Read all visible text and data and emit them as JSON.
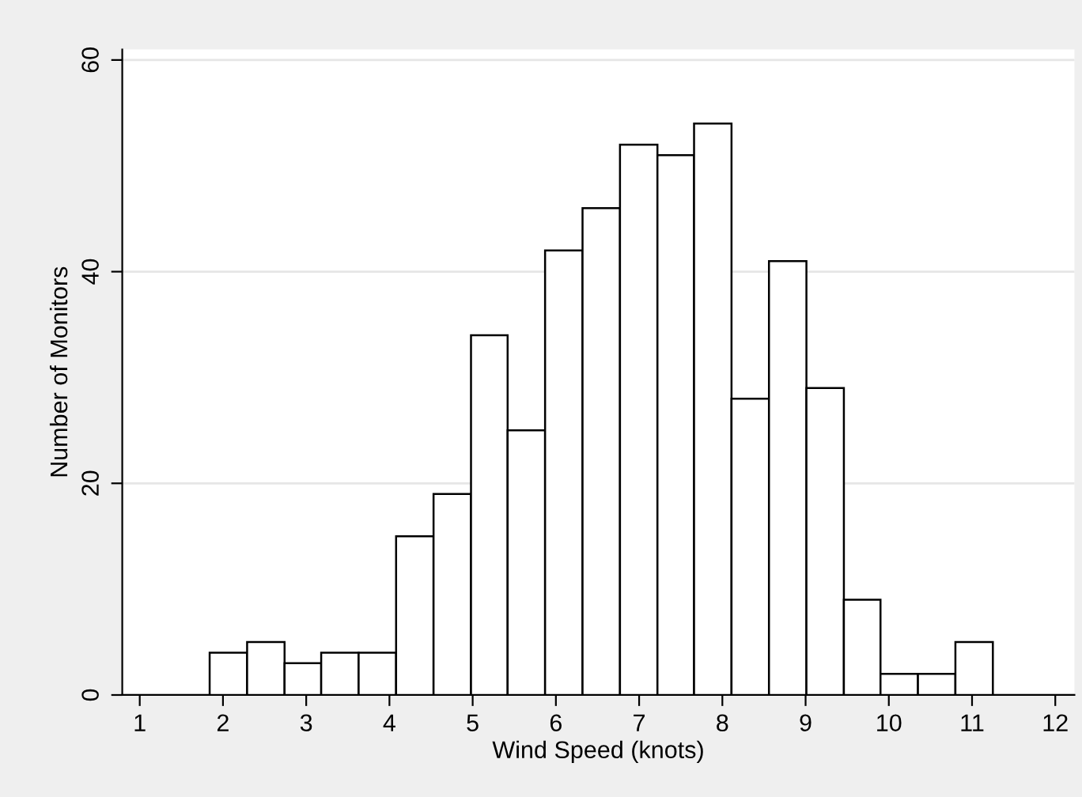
{
  "chart_data": {
    "type": "histogram",
    "xlabel": "Wind Speed (knots)",
    "ylabel": "Number of Monitors",
    "bins": [
      1.84,
      2.29,
      2.74,
      3.18,
      3.63,
      4.08,
      4.53,
      4.98,
      5.42,
      5.87,
      6.32,
      6.77,
      7.22,
      7.66,
      8.11,
      8.56,
      9.01,
      9.46,
      9.9,
      10.35,
      10.8,
      11.25
    ],
    "values": [
      4,
      5,
      3,
      4,
      4,
      15,
      19,
      34,
      25,
      42,
      46,
      52,
      51,
      54,
      28,
      41,
      29,
      9,
      2,
      2,
      5
    ],
    "color": "#ffffff",
    "xlim": [
      0.79,
      12.23
    ],
    "xticks": [
      1,
      2,
      3,
      4,
      5,
      6,
      7,
      8,
      9,
      10,
      11,
      12
    ],
    "ylim": [
      0,
      61
    ],
    "yticks": [
      0,
      20,
      40,
      60
    ],
    "grid": "y"
  }
}
